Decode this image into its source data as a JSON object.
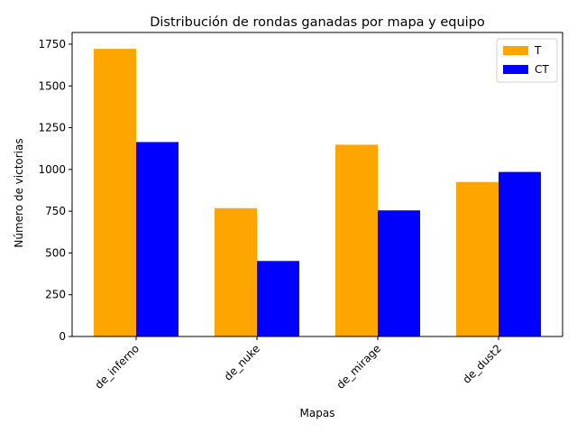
{
  "chart_data": {
    "type": "bar",
    "title": "Distribución de rondas ganadas por mapa y equipo",
    "xlabel": "Mapas",
    "ylabel": "Número de victorias",
    "categories": [
      "de_inferno",
      "de_nuke",
      "de_mirage",
      "de_dust2"
    ],
    "series": [
      {
        "name": "T",
        "color": "#ffa500",
        "values": [
          1722,
          768,
          1148,
          925
        ]
      },
      {
        "name": "CT",
        "color": "#0000ff",
        "values": [
          1164,
          452,
          755,
          985
        ]
      }
    ],
    "ylim": [
      0,
      1820
    ],
    "yticks": [
      0,
      250,
      500,
      750,
      1000,
      1250,
      1500,
      1750
    ],
    "grid": false,
    "legend_position": "top-right",
    "x_tick_rotation": 45
  }
}
